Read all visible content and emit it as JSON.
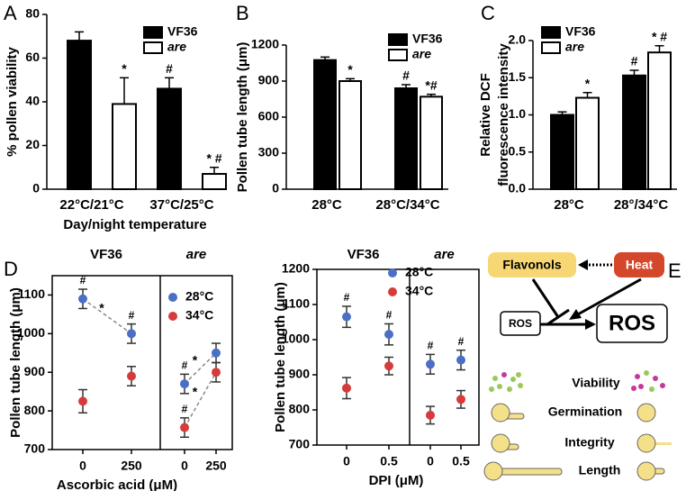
{
  "chart_data": [
    {
      "type": "bar",
      "panel": "A",
      "ylabel": "% pollen viability",
      "xlabel": "Day/night temperature",
      "categories": [
        "22°C/21°C",
        "37°C/25°C"
      ],
      "series": [
        {
          "name": "VF36",
          "color": "#000000",
          "values": [
            68,
            46
          ],
          "errors": [
            4,
            5
          ],
          "significance": [
            null,
            "#"
          ]
        },
        {
          "name": "are",
          "color": "#ffffff",
          "values": [
            39,
            7
          ],
          "errors": [
            12,
            3
          ],
          "significance": [
            "*",
            "* #"
          ]
        }
      ],
      "ylim": [
        0,
        80
      ],
      "yticks": [
        0,
        20,
        40,
        60,
        80
      ]
    },
    {
      "type": "bar",
      "panel": "B",
      "ylabel": "Pollen tube length (μm)",
      "categories": [
        "28°C",
        "28°C/34°C"
      ],
      "series": [
        {
          "name": "VF36",
          "color": "#000000",
          "values": [
            1075,
            840
          ],
          "errors": [
            25,
            30
          ],
          "significance": [
            null,
            "#"
          ]
        },
        {
          "name": "are",
          "color": "#ffffff",
          "values": [
            900,
            770
          ],
          "errors": [
            20,
            20
          ],
          "significance": [
            "*",
            "*#"
          ]
        }
      ],
      "ylim": [
        0,
        1200
      ],
      "yticks": [
        0,
        300,
        600,
        900,
        1200
      ]
    },
    {
      "type": "bar",
      "panel": "C",
      "ylabel": [
        "Relative DCF",
        "fluorescence intensity"
      ],
      "categories": [
        "28°C",
        "28°/34°C"
      ],
      "series": [
        {
          "name": "VF36",
          "color": "#000000",
          "values": [
            1.0,
            1.53
          ],
          "errors": [
            0.04,
            0.07
          ],
          "significance": [
            null,
            "#"
          ]
        },
        {
          "name": "are",
          "color": "#ffffff",
          "values": [
            1.23,
            1.84
          ],
          "errors": [
            0.07,
            0.09
          ],
          "significance": [
            "*",
            "* #"
          ]
        }
      ],
      "ylim": [
        0,
        2
      ],
      "yticks": [
        {
          "value": 0,
          "label": "0.0"
        },
        0.5,
        {
          "value": 1,
          "label": "1.0"
        },
        1.5,
        {
          "value": 2,
          "label": "2.0"
        }
      ]
    },
    {
      "type": "scatter",
      "panel": "D",
      "groups": [
        "VF36",
        "are"
      ],
      "ylabel": "Pollen tube length (μm)",
      "xlabel": "Ascorbic acid (μM)",
      "categories": [
        "0",
        "250",
        "0",
        "250"
      ],
      "series": [
        {
          "name": "28°C",
          "color": "#4a6fc4",
          "values": [
            1090,
            1000,
            870,
            950
          ],
          "errors": [
            25,
            25,
            25,
            25
          ],
          "significance": [
            "#",
            "#",
            "#",
            null
          ],
          "trend_labels": [
            "*",
            null,
            "*"
          ]
        },
        {
          "name": "34°C",
          "color": "#d63a3a",
          "values": [
            825,
            890,
            757,
            900
          ],
          "errors": [
            30,
            25,
            25,
            25
          ],
          "significance": [
            null,
            null,
            "#",
            null
          ],
          "trend_labels": [
            null,
            null,
            "*"
          ]
        }
      ],
      "ylim": [
        700,
        1150
      ],
      "yticks": [
        700,
        800,
        900,
        1000,
        1100
      ]
    },
    {
      "type": "scatter",
      "groups": [
        "VF36",
        "are"
      ],
      "ylabel": "Pollen tube length (μm)",
      "xlabel": "DPI (μM)",
      "categories": [
        "0",
        "0.5",
        "0",
        "0.5"
      ],
      "series": [
        {
          "name": "28°C",
          "color": "#4a6fc4",
          "values": [
            1065,
            1015,
            930,
            942
          ],
          "errors": [
            30,
            30,
            28,
            28
          ],
          "significance": [
            "#",
            "#",
            "#",
            "#"
          ]
        },
        {
          "name": "34°C",
          "color": "#d63a3a",
          "values": [
            862,
            925,
            785,
            830
          ],
          "errors": [
            30,
            25,
            25,
            25
          ]
        }
      ],
      "ylim": [
        700,
        1200
      ],
      "yticks": [
        700,
        800,
        900,
        1000,
        1100,
        1200
      ]
    }
  ],
  "diagram": {
    "panel": "E",
    "nodes": [
      "Flavonols",
      "Heat",
      "ROS",
      "ROS"
    ],
    "rows": [
      "Viability",
      "Germination",
      "Integrity",
      "Length"
    ]
  }
}
